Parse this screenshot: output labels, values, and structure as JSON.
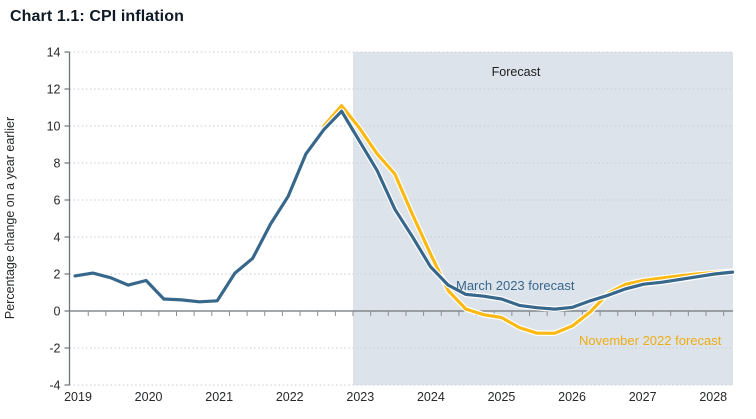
{
  "title": "Chart 1.1: CPI inflation",
  "chart_data": {
    "type": "line",
    "title": "Chart 1.1: CPI inflation",
    "xlabel": "",
    "ylabel": "Percentage change on a year earlier",
    "ylim": [
      -4,
      14
    ],
    "yticks": [
      -4,
      -2,
      0,
      2,
      4,
      6,
      8,
      10,
      12,
      14
    ],
    "x_year_labels": [
      "2019",
      "2020",
      "2021",
      "2022",
      "2023",
      "2024",
      "2025",
      "2026",
      "2027",
      "2028"
    ],
    "x_frequency": "quarterly",
    "x_start": "2019 Q1",
    "x_end": "2028 Q2",
    "grid": "horizontal-dotted",
    "legend_position": "labels-on-lines",
    "forecast_region": {
      "label": "Forecast",
      "start": "2023 Q1",
      "end": "2028 Q2",
      "fill": "#dce3ea"
    },
    "series": [
      {
        "name": "March 2023 forecast",
        "color": "#38678C",
        "start_quarter": "2019 Q1",
        "start_index": 0,
        "values": [
          1.9,
          2.05,
          1.8,
          1.4,
          1.65,
          0.65,
          0.6,
          0.5,
          0.55,
          2.05,
          2.85,
          4.7,
          6.2,
          8.5,
          9.8,
          10.8,
          9.2,
          7.6,
          5.5,
          4.0,
          2.4,
          1.4,
          0.9,
          0.8,
          0.65,
          0.3,
          0.18,
          0.1,
          0.2,
          0.55,
          0.85,
          1.2,
          1.45,
          1.55,
          1.7,
          1.85,
          2.0,
          2.1
        ]
      },
      {
        "name": "November 2022 forecast",
        "color": "#FDB913",
        "start_quarter": "2022 Q3",
        "start_index": 14,
        "values": [
          10.0,
          11.1,
          9.9,
          8.5,
          7.4,
          5.2,
          3.1,
          1.1,
          0.1,
          -0.2,
          -0.35,
          -0.9,
          -1.2,
          -1.2,
          -0.8,
          -0.05,
          0.95,
          1.45,
          1.65,
          1.78,
          1.9,
          2.0,
          2.08,
          2.15
        ]
      }
    ]
  }
}
